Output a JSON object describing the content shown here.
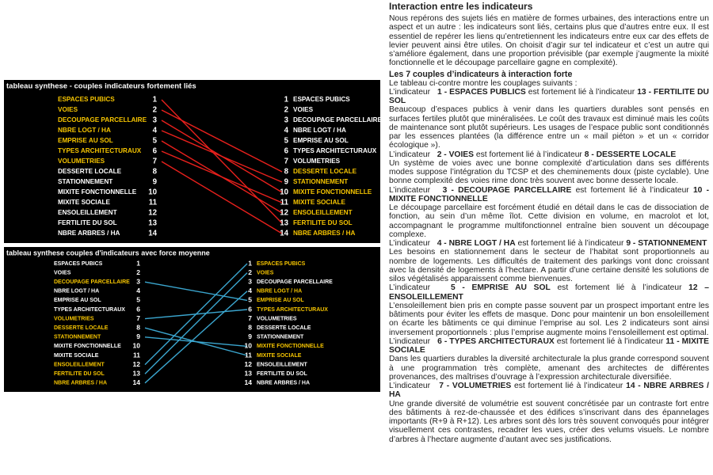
{
  "panel_top": {
    "title": "tableau synthese - couples indicateurs fortement liés",
    "left": [
      {
        "number": 1,
        "label": "ESPACES PUBICS"
      },
      {
        "number": 2,
        "label": "VOIES"
      },
      {
        "number": 3,
        "label": "DECOUPAGE PARCELLAIRE"
      },
      {
        "number": 4,
        "label": "NBRE LOGT / HA"
      },
      {
        "number": 5,
        "label": "EMPRISE AU SOL"
      },
      {
        "number": 6,
        "label": "TYPES ARCHITECTURAUX"
      },
      {
        "number": 7,
        "label": "VOLUMETRIES"
      },
      {
        "number": 8,
        "label": "DESSERTE LOCALE"
      },
      {
        "number": 9,
        "label": "STATIONNEMENT"
      },
      {
        "number": 10,
        "label": "MIXITE FONCTIONNELLE"
      },
      {
        "number": 11,
        "label": "MIXITE SOCIALE"
      },
      {
        "number": 12,
        "label": "ENSOLEILLEMENT"
      },
      {
        "number": 13,
        "label": "FERTILITE DU SOL"
      },
      {
        "number": 14,
        "label": "NBRE ARBRES / HA"
      }
    ],
    "right": [
      {
        "number": 1,
        "label": "ESPACES PUBICS"
      },
      {
        "number": 2,
        "label": "VOIES"
      },
      {
        "number": 3,
        "label": "DECOUPAGE PARCELLAIRE"
      },
      {
        "number": 4,
        "label": "NBRE LOGT / HA"
      },
      {
        "number": 5,
        "label": "EMPRISE AU SOL"
      },
      {
        "number": 6,
        "label": "TYPES ARCHITECTURAUX"
      },
      {
        "number": 7,
        "label": "VOLUMETRIES"
      },
      {
        "number": 8,
        "label": "DESSERTE LOCALE"
      },
      {
        "number": 9,
        "label": "STATIONNEMENT"
      },
      {
        "number": 10,
        "label": "MIXITE FONCTIONNELLE"
      },
      {
        "number": 11,
        "label": "MIXITE SOCIALE"
      },
      {
        "number": 12,
        "label": "ENSOLEILLEMENT"
      },
      {
        "number": 13,
        "label": "FERTILITE DU SOL"
      },
      {
        "number": 14,
        "label": "NBRE ARBRES / HA"
      }
    ]
  },
  "panel_bottom": {
    "title": "tableau synthese couples d'indicateurs avec force moyenne",
    "left": [
      {
        "number": 1,
        "label": "ESPACES PUBICS"
      },
      {
        "number": 2,
        "label": "VOIES"
      },
      {
        "number": 3,
        "label": "DECOUPAGE PARCELLAIRE"
      },
      {
        "number": 4,
        "label": "NBRE LOGT / HA"
      },
      {
        "number": 5,
        "label": "EMPRISE AU SOL"
      },
      {
        "number": 6,
        "label": "TYPES ARCHITECTURAUX"
      },
      {
        "number": 7,
        "label": "VOLUMETRIES"
      },
      {
        "number": 8,
        "label": "DESSERTE LOCALE"
      },
      {
        "number": 9,
        "label": "STATIONNEMENT"
      },
      {
        "number": 10,
        "label": "MIXITE FONCTIONNELLE"
      },
      {
        "number": 11,
        "label": "MIXITE SOCIALE"
      },
      {
        "number": 12,
        "label": "ENSOLEILLEMENT"
      },
      {
        "number": 13,
        "label": "FERTILITE DU SOL"
      },
      {
        "number": 14,
        "label": "NBRE ARBRES / HA"
      }
    ],
    "right": [
      {
        "number": 1,
        "label": "ESPACES PUBICS"
      },
      {
        "number": 2,
        "label": "VOIES"
      },
      {
        "number": 3,
        "label": "DECOUPAGE PARCELLAIRE"
      },
      {
        "number": 4,
        "label": "NBRE LOGT / HA"
      },
      {
        "number": 5,
        "label": "EMPRISE AU SOL"
      },
      {
        "number": 6,
        "label": "TYPES ARCHITECTURAUX"
      },
      {
        "number": 7,
        "label": "VOLUMETRIES"
      },
      {
        "number": 8,
        "label": "DESSERTE LOCALE"
      },
      {
        "number": 9,
        "label": "STATIONNEMENT"
      },
      {
        "number": 10,
        "label": "MIXITE FONCTIONNELLE"
      },
      {
        "number": 11,
        "label": "MIXITE SOCIALE"
      },
      {
        "number": 12,
        "label": "ENSOLEILLEMENT"
      },
      {
        "number": 13,
        "label": "FERTILITE DU SOL"
      },
      {
        "number": 14,
        "label": "NBRE ARBRES / HA"
      }
    ]
  },
  "article": {
    "heading": "Interaction entre les indicateurs",
    "intro": "Nous repérons des sujets liés en matière de formes urbaines, des interactions entre un aspect et un autre : les indicateurs sont liés, certains plus que d’autres entre eux. Il est essentiel de repérer les liens qu’entretiennent les indicateurs entre eux car des effets de levier peuvent ainsi être utiles. On choisit d’agir sur tel indicateur et c’est un autre qui s’améliore également, dans une proportion prévisible (par exemple j’augmente la mixité fonctionnelle et le découpage parcellaire gagne en complexité).",
    "subheading": "Les 7 couples d’indicateurs à interaction forte",
    "lead": "Le tableau ci-contre montre les couplages suivants :",
    "pairs": [
      {
        "prefix": "L’indicateur",
        "a": "1 - ESPACES PUBLICS",
        "mid": "est fortement lié à l’indicateur",
        "b": "13 - FERTILITE DU SOL",
        "body": "Beaucoup d’espaces publics à venir dans les quartiers durables sont pensés en surfaces fertiles plutôt que minéralisées. Le coût des travaux est diminué mais les coûts de maintenance sont plutôt supérieurs. Les usages de l’espace public sont conditionnés par les essences plantées (la différence entre un « mail piéton » et un « corridor écologique »)."
      },
      {
        "prefix": "L’indicateur",
        "a": "2 - VOIES",
        "mid": "est fortement lié à l’indicateur",
        "b": "8 - DESSERTE LOCALE",
        "body": "Un système de voies avec une bonne complexité d’articulation dans ses différents modes suppose l’intégration du TCSP et des cheminements doux (piste cyclable). Une bonne complexité des voies rime donc très souvent avec bonne desserte locale."
      },
      {
        "prefix": "L’indicateur",
        "a": "3 - DECOUPAGE PARCELLAIRE",
        "mid": "est fortement lié à l’indicateur",
        "b": "10 - MIXITE FONCTIONNELLE",
        "body": "Le découpage parcellaire est forcément étudié en détail dans le cas de dissociation de fonction, au sein d’un même îlot. Cette division en volume, en macrolot et lot, accompagnant le programme multifonctionnel entraîne bien souvent un découpage complexe."
      },
      {
        "prefix": "L’indicateur",
        "a": "4 - NBRE LOGT / HA",
        "mid": "est fortement lié à l’indicateur",
        "b": "9 - STATIONNEMENT",
        "body": "Les besoins en stationnement dans le secteur de l’habitat sont proportionnels au nombre de logements. Les difficultés de traitement des parkings vont donc croissant avec la densité de logements à l’hectare. A partir d’une certaine densité les solutions de silos végétalisés apparaissent comme bienvenues."
      },
      {
        "prefix": "L’indicateur",
        "a": "5 - EMPRISE AU SOL",
        "mid": "est fortement lié à l’indicateur",
        "b": "12 – ENSOLEILLEMENT",
        "body": "L’ensoleillement bien pris en compte passe souvent par un prospect important entre les bâtiments pour éviter les effets de masque. Donc pour maintenir un bon ensoleillement on écarte les bâtiments ce qui diminue l’emprise au sol. Les 2 indicateurs sont ainsi inversement proportionnels : plus l’emprise augmente moins l’ensoleillement est optimal."
      },
      {
        "prefix": "L’indicateur",
        "a": "6 - TYPES ARCHITECTURAUX",
        "mid": "est fortement lié à l’indicateur",
        "b": "11 - MIXITE SOCIALE",
        "body": "Dans les quartiers durables la diversité architecturale la plus grande correspond souvent à une programmation très complète, amenant des architectes de différentes provenances, des maîtrises d’ouvrage à l’expression architecturale diversifiée."
      },
      {
        "prefix": "L’indicateur",
        "a": "7 - VOLUMETRIES",
        "mid": "est fortement lié à l’indicateur",
        "b": "14 - NBRE ARBRES / HA",
        "body": "Une grande diversité de volumétrie est souvent concrétisée par un contraste fort entre des bâtiments à rez-de-chaussée et des édifices s’inscrivant dans des épannelages importants (R+9 à R+12). Les arbres sont dès lors très souvent convoqués pour intégrer visuellement ces contrastes, recadrer les vues, créer des velums visuels. Le nombre d’arbres à l’hectare augmente d’autant avec ses justifications."
      }
    ]
  }
}
